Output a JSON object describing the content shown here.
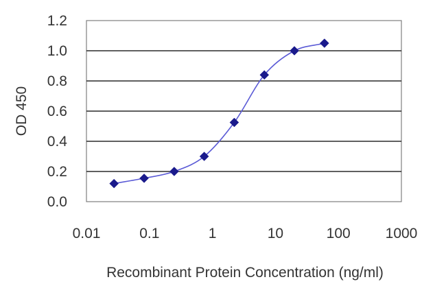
{
  "chart_data": {
    "type": "scatter",
    "title": "",
    "xlabel": "Recombinant Protein Concentration (ng/ml)",
    "ylabel": "OD 450",
    "xscale": "log",
    "xlim": [
      0.01,
      1000
    ],
    "ylim": [
      0.0,
      1.2
    ],
    "x_ticks": [
      "0.01",
      "0.1",
      "1",
      "10",
      "100",
      "1000"
    ],
    "y_ticks": [
      "0.0",
      "0.2",
      "0.4",
      "0.6",
      "0.8",
      "1.0",
      "1.2"
    ],
    "grid": "horizontal",
    "legend": "none",
    "series_color": "#1a1a8c",
    "curve_color": "#5a5ad6",
    "marker": "diamond",
    "points": [
      {
        "x": 0.0274,
        "y": 0.12
      },
      {
        "x": 0.0823,
        "y": 0.155
      },
      {
        "x": 0.247,
        "y": 0.2
      },
      {
        "x": 0.741,
        "y": 0.3
      },
      {
        "x": 2.22,
        "y": 0.525
      },
      {
        "x": 6.67,
        "y": 0.84
      },
      {
        "x": 20,
        "y": 1.0
      },
      {
        "x": 60,
        "y": 1.05
      }
    ]
  }
}
